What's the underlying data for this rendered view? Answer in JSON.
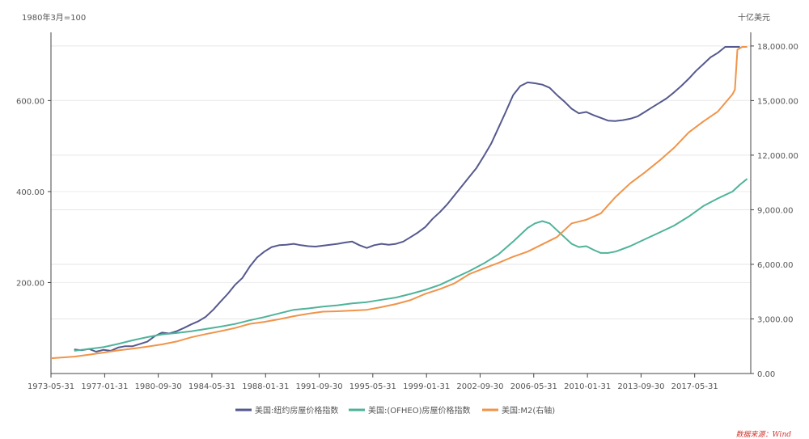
{
  "chart_data": {
    "type": "line",
    "left_unit": "1980年3月=100",
    "right_unit": "十亿美元",
    "source": "数据来源：Wind",
    "x_range": [
      "1973-05-31",
      "2021-03-31"
    ],
    "x_ticks": [
      "1973-05-31",
      "1977-01-31",
      "1980-09-30",
      "1984-05-31",
      "1988-01-31",
      "1991-09-30",
      "1995-05-31",
      "1999-01-31",
      "2002-09-30",
      "2006-05-31",
      "2010-01-31",
      "2013-09-30",
      "2017-05-31"
    ],
    "y_left": {
      "min": 0,
      "max": 750,
      "ticks": [
        200,
        400,
        600
      ],
      "tick_labels": [
        "200.00",
        "400.00",
        "600.00"
      ]
    },
    "y_right": {
      "min": 0,
      "max": 18750,
      "ticks": [
        0,
        3000,
        6000,
        9000,
        12000,
        15000,
        18000
      ],
      "tick_labels": [
        "0.00",
        "3,000.00",
        "6,000.00",
        "9,000.00",
        "12,000.00",
        "15,000.00",
        "18,000.00"
      ]
    },
    "grid": true,
    "legend_position": "bottom-center",
    "series": [
      {
        "name": "美国:纽约房屋价格指数",
        "axis": "left",
        "color": "#55598e",
        "points": [
          [
            "1975-01-01",
            53
          ],
          [
            "1975-07-01",
            51
          ],
          [
            "1976-01-01",
            54
          ],
          [
            "1976-07-01",
            48
          ],
          [
            "1977-01-01",
            52
          ],
          [
            "1977-07-01",
            50
          ],
          [
            "1978-01-01",
            57
          ],
          [
            "1978-07-01",
            60
          ],
          [
            "1979-01-01",
            60
          ],
          [
            "1979-07-01",
            65
          ],
          [
            "1980-01-01",
            70
          ],
          [
            "1980-07-01",
            82
          ],
          [
            "1981-01-01",
            90
          ],
          [
            "1981-07-01",
            88
          ],
          [
            "1982-01-01",
            93
          ],
          [
            "1982-07-01",
            100
          ],
          [
            "1983-01-01",
            108
          ],
          [
            "1983-07-01",
            115
          ],
          [
            "1984-01-01",
            125
          ],
          [
            "1984-07-01",
            140
          ],
          [
            "1985-01-01",
            158
          ],
          [
            "1985-07-01",
            175
          ],
          [
            "1986-01-01",
            195
          ],
          [
            "1986-07-01",
            210
          ],
          [
            "1987-01-01",
            235
          ],
          [
            "1987-07-01",
            255
          ],
          [
            "1988-01-01",
            268
          ],
          [
            "1988-07-01",
            278
          ],
          [
            "1989-01-01",
            282
          ],
          [
            "1989-07-01",
            283
          ],
          [
            "1990-01-01",
            285
          ],
          [
            "1990-07-01",
            282
          ],
          [
            "1991-01-01",
            280
          ],
          [
            "1991-07-01",
            279
          ],
          [
            "1992-01-01",
            281
          ],
          [
            "1992-07-01",
            283
          ],
          [
            "1993-01-01",
            285
          ],
          [
            "1993-07-01",
            288
          ],
          [
            "1994-01-01",
            290
          ],
          [
            "1994-07-01",
            282
          ],
          [
            "1995-01-01",
            276
          ],
          [
            "1995-07-01",
            282
          ],
          [
            "1996-01-01",
            285
          ],
          [
            "1996-07-01",
            283
          ],
          [
            "1997-01-01",
            285
          ],
          [
            "1997-07-01",
            290
          ],
          [
            "1998-01-01",
            300
          ],
          [
            "1998-07-01",
            310
          ],
          [
            "1999-01-01",
            322
          ],
          [
            "1999-07-01",
            340
          ],
          [
            "2000-01-01",
            355
          ],
          [
            "2000-07-01",
            372
          ],
          [
            "2001-01-01",
            392
          ],
          [
            "2001-07-01",
            412
          ],
          [
            "2002-01-01",
            432
          ],
          [
            "2002-07-01",
            452
          ],
          [
            "2003-01-01",
            478
          ],
          [
            "2003-07-01",
            505
          ],
          [
            "2004-01-01",
            540
          ],
          [
            "2004-07-01",
            575
          ],
          [
            "2005-01-01",
            612
          ],
          [
            "2005-07-01",
            632
          ],
          [
            "2006-01-01",
            640
          ],
          [
            "2006-07-01",
            638
          ],
          [
            "2007-01-01",
            635
          ],
          [
            "2007-07-01",
            628
          ],
          [
            "2008-01-01",
            612
          ],
          [
            "2008-07-01",
            598
          ],
          [
            "2009-01-01",
            582
          ],
          [
            "2009-07-01",
            572
          ],
          [
            "2010-01-01",
            575
          ],
          [
            "2010-07-01",
            568
          ],
          [
            "2011-01-01",
            562
          ],
          [
            "2011-07-01",
            556
          ],
          [
            "2012-01-01",
            555
          ],
          [
            "2012-07-01",
            557
          ],
          [
            "2013-01-01",
            560
          ],
          [
            "2013-07-01",
            565
          ],
          [
            "2014-01-01",
            575
          ],
          [
            "2014-07-01",
            585
          ],
          [
            "2015-01-01",
            595
          ],
          [
            "2015-07-01",
            605
          ],
          [
            "2016-01-01",
            618
          ],
          [
            "2016-07-01",
            632
          ],
          [
            "2017-01-01",
            648
          ],
          [
            "2017-07-01",
            665
          ],
          [
            "2018-01-01",
            680
          ],
          [
            "2018-07-01",
            695
          ],
          [
            "2019-01-01",
            705
          ],
          [
            "2019-07-01",
            718
          ],
          [
            "2020-01-01",
            725
          ],
          [
            "2020-07-01",
            735
          ]
        ]
      },
      {
        "name": "美国:(OFHEO)房屋价格指数",
        "axis": "left",
        "color": "#4fb39a",
        "points": [
          [
            "1975-01-01",
            50
          ],
          [
            "1976-01-01",
            54
          ],
          [
            "1977-01-01",
            58
          ],
          [
            "1978-01-01",
            65
          ],
          [
            "1979-01-01",
            73
          ],
          [
            "1980-01-01",
            80
          ],
          [
            "1981-01-01",
            86
          ],
          [
            "1982-01-01",
            89
          ],
          [
            "1983-01-01",
            93
          ],
          [
            "1984-01-01",
            98
          ],
          [
            "1985-01-01",
            103
          ],
          [
            "1986-01-01",
            109
          ],
          [
            "1987-01-01",
            117
          ],
          [
            "1988-01-01",
            124
          ],
          [
            "1989-01-01",
            132
          ],
          [
            "1990-01-01",
            140
          ],
          [
            "1991-01-01",
            143
          ],
          [
            "1992-01-01",
            147
          ],
          [
            "1993-01-01",
            150
          ],
          [
            "1994-01-01",
            154
          ],
          [
            "1995-01-01",
            157
          ],
          [
            "1996-01-01",
            162
          ],
          [
            "1997-01-01",
            167
          ],
          [
            "1998-01-01",
            175
          ],
          [
            "1999-01-01",
            184
          ],
          [
            "2000-01-01",
            195
          ],
          [
            "2001-01-01",
            210
          ],
          [
            "2002-01-01",
            225
          ],
          [
            "2003-01-01",
            242
          ],
          [
            "2004-01-01",
            262
          ],
          [
            "2005-01-01",
            290
          ],
          [
            "2006-01-01",
            320
          ],
          [
            "2006-07-01",
            330
          ],
          [
            "2007-01-01",
            335
          ],
          [
            "2007-07-01",
            330
          ],
          [
            "2008-01-01",
            315
          ],
          [
            "2008-07-01",
            300
          ],
          [
            "2009-01-01",
            285
          ],
          [
            "2009-07-01",
            278
          ],
          [
            "2010-01-01",
            280
          ],
          [
            "2010-07-01",
            272
          ],
          [
            "2011-01-01",
            265
          ],
          [
            "2011-07-01",
            265
          ],
          [
            "2012-01-01",
            268
          ],
          [
            "2013-01-01",
            280
          ],
          [
            "2014-01-01",
            295
          ],
          [
            "2015-01-01",
            310
          ],
          [
            "2016-01-01",
            325
          ],
          [
            "2017-01-01",
            345
          ],
          [
            "2018-01-01",
            368
          ],
          [
            "2019-01-01",
            385
          ],
          [
            "2020-01-01",
            400
          ],
          [
            "2020-07-01",
            415
          ],
          [
            "2021-01-01",
            428
          ]
        ]
      },
      {
        "name": "美国:M2(右轴)",
        "axis": "right",
        "color": "#f0944a",
        "points": [
          [
            "1973-05-31",
            840
          ],
          [
            "1975-01-01",
            930
          ],
          [
            "1976-01-01",
            1030
          ],
          [
            "1977-01-01",
            1150
          ],
          [
            "1978-01-01",
            1270
          ],
          [
            "1979-01-01",
            1370
          ],
          [
            "1980-01-01",
            1480
          ],
          [
            "1981-01-01",
            1600
          ],
          [
            "1982-01-01",
            1760
          ],
          [
            "1983-01-01",
            1990
          ],
          [
            "1984-01-01",
            2170
          ],
          [
            "1985-01-01",
            2330
          ],
          [
            "1986-01-01",
            2500
          ],
          [
            "1987-01-01",
            2730
          ],
          [
            "1988-01-01",
            2840
          ],
          [
            "1989-01-01",
            2980
          ],
          [
            "1990-01-01",
            3150
          ],
          [
            "1991-01-01",
            3290
          ],
          [
            "1992-01-01",
            3400
          ],
          [
            "1993-01-01",
            3420
          ],
          [
            "1994-01-01",
            3460
          ],
          [
            "1995-01-01",
            3500
          ],
          [
            "1996-01-01",
            3650
          ],
          [
            "1997-01-01",
            3820
          ],
          [
            "1998-01-01",
            4040
          ],
          [
            "1999-01-01",
            4380
          ],
          [
            "2000-01-01",
            4640
          ],
          [
            "2001-01-01",
            4960
          ],
          [
            "2002-01-01",
            5460
          ],
          [
            "2003-01-01",
            5780
          ],
          [
            "2004-01-01",
            6080
          ],
          [
            "2005-01-01",
            6420
          ],
          [
            "2006-01-01",
            6700
          ],
          [
            "2007-01-01",
            7100
          ],
          [
            "2008-01-01",
            7500
          ],
          [
            "2009-01-01",
            8250
          ],
          [
            "2010-01-01",
            8450
          ],
          [
            "2011-01-01",
            8800
          ],
          [
            "2012-01-01",
            9700
          ],
          [
            "2013-01-01",
            10450
          ],
          [
            "2014-01-01",
            11050
          ],
          [
            "2015-01-01",
            11700
          ],
          [
            "2016-01-01",
            12400
          ],
          [
            "2017-01-01",
            13250
          ],
          [
            "2018-01-01",
            13850
          ],
          [
            "2019-01-01",
            14400
          ],
          [
            "2020-01-01",
            15350
          ],
          [
            "2020-03-01",
            15600
          ],
          [
            "2020-05-01",
            17800
          ],
          [
            "2020-09-01",
            18400
          ],
          [
            "2021-01-01",
            19400
          ]
        ]
      }
    ]
  }
}
